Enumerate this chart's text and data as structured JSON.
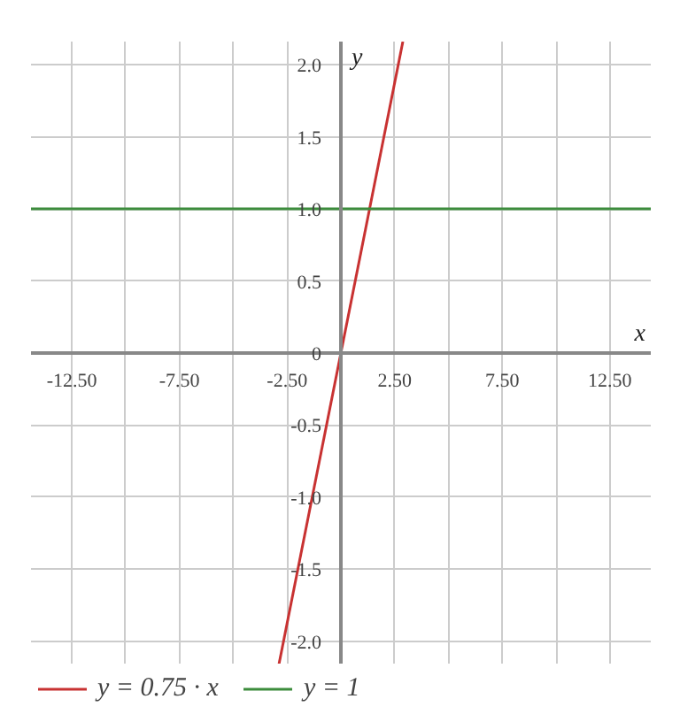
{
  "chart_data": {
    "type": "line",
    "xlabel": "x",
    "ylabel": "y",
    "xlim": [
      -14.4,
      14.4
    ],
    "ylim": [
      -2.16,
      2.16
    ],
    "xticks": [
      {
        "value": -12.5,
        "label": "-12.50"
      },
      {
        "value": -10,
        "label": null
      },
      {
        "value": -7.5,
        "label": "-7.50"
      },
      {
        "value": -5,
        "label": null
      },
      {
        "value": -2.5,
        "label": "-2.50"
      },
      {
        "value": 0,
        "label": null
      },
      {
        "value": 2.5,
        "label": "2.50"
      },
      {
        "value": 5,
        "label": null
      },
      {
        "value": 7.5,
        "label": "7.50"
      },
      {
        "value": 10,
        "label": null
      },
      {
        "value": 12.5,
        "label": "12.50"
      }
    ],
    "yticks": [
      {
        "value": -2,
        "label": "-2.0"
      },
      {
        "value": -1.5,
        "label": "-1.5"
      },
      {
        "value": -1,
        "label": "-1.0"
      },
      {
        "value": -0.5,
        "label": "-0.5"
      },
      0,
      {
        "value": 0.5,
        "label": "0.5"
      },
      {
        "value": 1,
        "label": "1.0"
      },
      {
        "value": 1.5,
        "label": "1.5"
      },
      {
        "value": 2,
        "label": "2.0"
      }
    ],
    "series": [
      {
        "name": "y = 0.75 · x",
        "color": "#c83232",
        "x": [
          -2.88,
          2.88
        ],
        "values": [
          -2.16,
          2.16
        ]
      },
      {
        "name": "y = 1",
        "color": "#3c8c3c",
        "x": [
          -14.4,
          14.4
        ],
        "values": [
          1,
          1
        ]
      }
    ],
    "grid": true,
    "legend": "bottom",
    "marker": "none"
  }
}
